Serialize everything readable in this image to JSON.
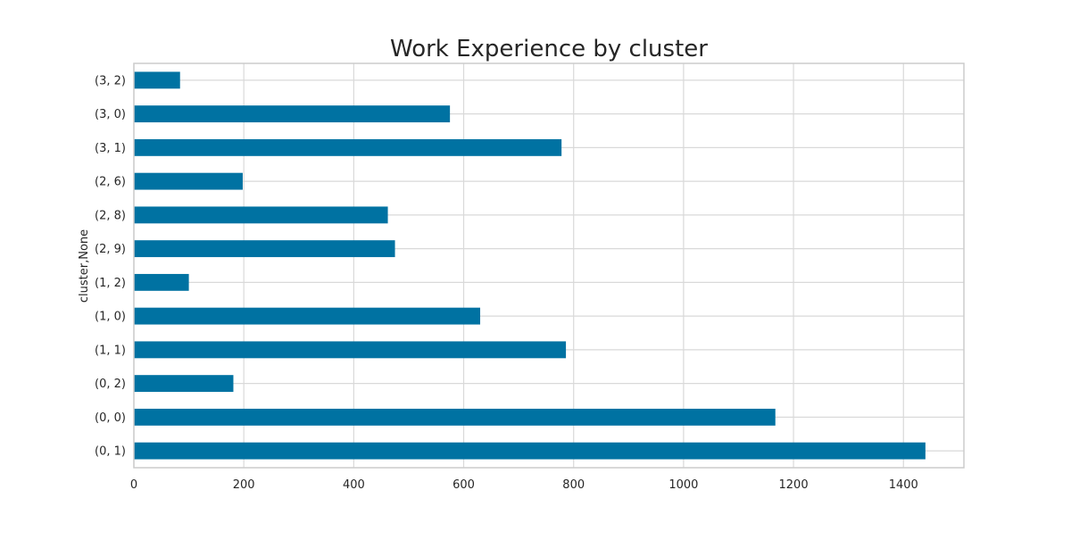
{
  "chart_data": {
    "type": "bar",
    "orientation": "horizontal",
    "title": "Work Experience by cluster",
    "xlabel": "",
    "ylabel": "cluster,None",
    "xlim": [
      0,
      1510
    ],
    "xticks": [
      0,
      200,
      400,
      600,
      800,
      1000,
      1200,
      1400
    ],
    "categories": [
      "(0, 1)",
      "(0, 0)",
      "(0, 2)",
      "(1, 1)",
      "(1, 0)",
      "(1, 2)",
      "(2, 9)",
      "(2, 8)",
      "(2, 6)",
      "(3, 1)",
      "(3, 0)",
      "(3, 2)"
    ],
    "values": [
      1440,
      1167,
      181,
      786,
      630,
      100,
      475,
      462,
      198,
      778,
      575,
      84
    ],
    "bar_color": "#0072a2",
    "grid": true,
    "legend": "none"
  }
}
